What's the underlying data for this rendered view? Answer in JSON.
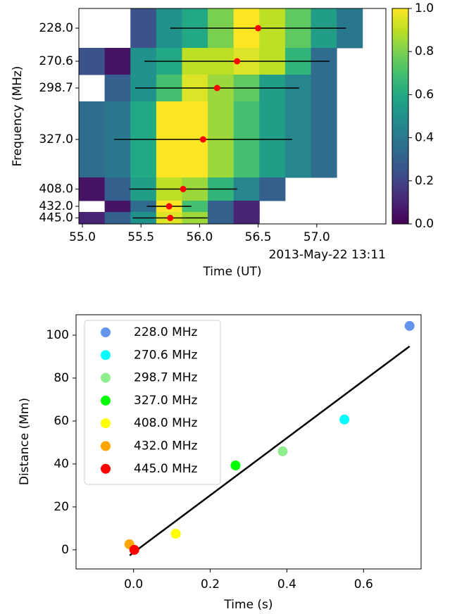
{
  "chart_data": [
    {
      "type": "heatmap",
      "xlabel": "Time (UT)",
      "ylabel": "Frequency (MHz)",
      "x_offset_label": "2013-May-22 13:11",
      "x_edges": [
        54.97,
        55.19,
        55.41,
        55.63,
        55.85,
        56.07,
        56.29,
        56.51,
        56.73,
        56.95,
        57.17,
        57.39
      ],
      "categories": [
        "228.0",
        "270.6",
        "298.7",
        "327.0",
        "408.0",
        "432.0",
        "445.0"
      ],
      "values": [
        [
          null,
          null,
          0.25,
          0.5,
          0.6,
          0.8,
          1.0,
          0.9,
          0.75,
          0.55,
          0.4
        ],
        [
          0.25,
          0.05,
          0.5,
          0.6,
          0.9,
          0.9,
          0.95,
          0.9,
          0.65,
          0.35,
          null
        ],
        [
          null,
          0.3,
          0.5,
          0.7,
          0.95,
          0.85,
          0.75,
          0.55,
          0.45,
          0.35,
          null
        ],
        [
          0.35,
          0.4,
          0.6,
          1.0,
          1.0,
          0.85,
          0.7,
          0.55,
          0.45,
          0.35,
          null
        ],
        [
          0.05,
          0.3,
          0.55,
          0.9,
          0.85,
          0.65,
          0.45,
          0.3,
          null,
          null,
          null
        ],
        [
          null,
          0.05,
          0.35,
          1.0,
          0.7,
          0.3,
          0.1,
          null,
          null,
          null,
          null
        ],
        [
          0.1,
          0.3,
          0.5,
          0.95,
          0.85,
          0.3,
          0.1,
          null,
          null,
          null,
          null
        ]
      ],
      "colormap": "viridis",
      "clim": [
        0,
        1
      ],
      "cticks": [
        {
          "value": 0,
          "label": "0.0"
        },
        0.2,
        0.4,
        0.6,
        0.8,
        {
          "value": 1,
          "label": "1.0"
        }
      ],
      "xlim": [
        54.97,
        57.59
      ],
      "xticks": [
        {
          "value": 55,
          "label": "55.0"
        },
        55.5,
        {
          "value": 56,
          "label": "56.0"
        },
        56.5,
        {
          "value": 57,
          "label": "57.0"
        }
      ],
      "error_bars": {
        "color": "#000000",
        "marker_color": "#ff0000",
        "x": [
          56.5,
          56.32,
          56.15,
          56.03,
          55.86,
          55.74,
          55.75
        ],
        "xerr": [
          0.75,
          0.79,
          0.7,
          0.76,
          0.46,
          0.19,
          0.32
        ]
      }
    },
    {
      "type": "scatter",
      "xlabel": "Time (s)",
      "ylabel": "Distance (Mm)",
      "xlim": [
        -0.15,
        0.75
      ],
      "ylim": [
        -8.9,
        109.5
      ],
      "xticks": [
        {
          "value": 0,
          "label": "0.0"
        },
        0.2,
        0.4,
        0.6
      ],
      "yticks": [
        0,
        20,
        40,
        60,
        80,
        100
      ],
      "legend": "upper left",
      "series": [
        {
          "name": "228.0 MHz",
          "color": "#6495ed",
          "x": [
            0.72
          ],
          "values": [
            104.3
          ]
        },
        {
          "name": "270.6 MHz",
          "color": "#00ffff",
          "x": [
            0.55
          ],
          "values": [
            60.7
          ]
        },
        {
          "name": "298.7 MHz",
          "color": "#90ee90",
          "x": [
            0.389
          ],
          "values": [
            45.9
          ]
        },
        {
          "name": "327.0 MHz",
          "color": "#00ff00",
          "x": [
            0.266
          ],
          "values": [
            39.3
          ]
        },
        {
          "name": "408.0 MHz",
          "color": "#ffff00",
          "x": [
            0.11
          ],
          "values": [
            7.5
          ]
        },
        {
          "name": "432.0 MHz",
          "color": "#ffa500",
          "x": [
            -0.011
          ],
          "values": [
            2.6
          ]
        },
        {
          "name": "445.0 MHz",
          "color": "#ff0000",
          "x": [
            0.002
          ],
          "values": [
            0
          ]
        }
      ],
      "fit_line": {
        "color": "#000000",
        "x": [
          -0.01,
          0.72
        ],
        "values": [
          -2.6,
          94.8
        ]
      }
    }
  ]
}
